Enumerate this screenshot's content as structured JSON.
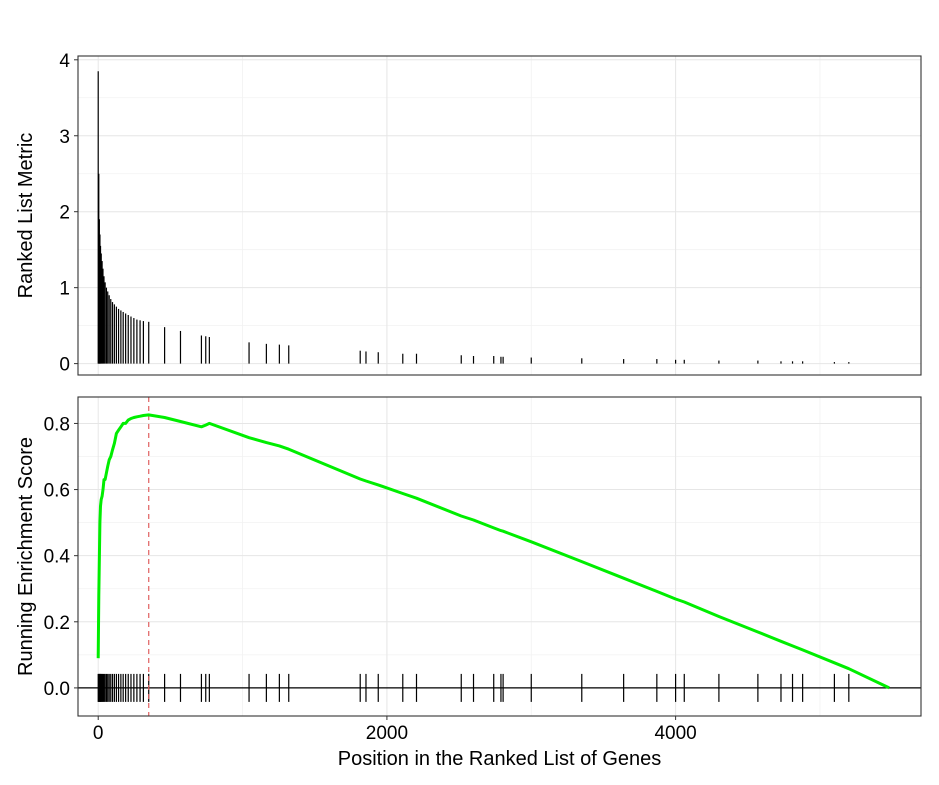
{
  "chart_data": [
    {
      "type": "bar",
      "panel": "top",
      "ylabel": "Ranked List Metric",
      "xlim": [
        -140,
        5700
      ],
      "ylim": [
        -0.15,
        4.05
      ],
      "x_ticks": [
        0,
        2000,
        4000
      ],
      "y_ticks": [
        0,
        1,
        2,
        3,
        4
      ],
      "y_tick_labels": [
        "0",
        "1",
        "2",
        "3",
        "4"
      ],
      "grid": true,
      "series": [
        {
          "x": [
            0,
            4,
            8,
            12,
            16,
            21,
            27,
            33,
            40,
            48,
            57,
            66,
            76,
            87,
            99,
            112,
            126,
            141,
            157,
            173,
            190,
            208,
            227,
            247,
            268,
            290,
            313,
            350,
            460,
            570,
            715,
            745,
            770,
            1045,
            1165,
            1255,
            1320,
            1815,
            1855,
            1940,
            2110,
            2205,
            2515,
            2600,
            2740,
            2790,
            2805,
            3000,
            3350,
            3640,
            3870,
            4000,
            4060,
            4300,
            4570,
            4730,
            4810,
            4880,
            5100,
            5200
          ],
          "values": [
            3.85,
            2.5,
            1.9,
            1.7,
            1.55,
            1.45,
            1.35,
            1.25,
            1.15,
            1.07,
            1.0,
            0.95,
            0.9,
            0.85,
            0.81,
            0.78,
            0.75,
            0.72,
            0.7,
            0.68,
            0.66,
            0.64,
            0.62,
            0.6,
            0.58,
            0.57,
            0.56,
            0.55,
            0.48,
            0.43,
            0.37,
            0.36,
            0.35,
            0.28,
            0.26,
            0.25,
            0.24,
            0.17,
            0.16,
            0.15,
            0.13,
            0.13,
            0.11,
            0.1,
            0.1,
            0.09,
            0.09,
            0.08,
            0.07,
            0.06,
            0.06,
            0.05,
            0.05,
            0.04,
            0.04,
            0.03,
            0.03,
            0.03,
            0.02,
            0.02
          ]
        }
      ]
    },
    {
      "type": "line",
      "panel": "bottom",
      "xlabel": "Position in the Ranked List of Genes",
      "ylabel": "Running Enrichment Score",
      "xlim": [
        -140,
        5700
      ],
      "ylim": [
        -0.085,
        0.88
      ],
      "x_ticks": [
        0,
        2000,
        4000
      ],
      "x_tick_labels": [
        "0",
        "2000",
        "4000"
      ],
      "y_ticks": [
        0,
        0.2,
        0.4,
        0.6,
        0.8
      ],
      "y_tick_labels": [
        "0.0",
        "0.2",
        "0.4",
        "0.6",
        "0.8"
      ],
      "grid": true,
      "line_color": "#00ee00",
      "peak_marker": {
        "x": 350,
        "color": "#e06060",
        "style": "dashed"
      },
      "zero_line": 0,
      "series": [
        {
          "x": [
            0,
            4,
            8,
            12,
            16,
            21,
            27,
            33,
            40,
            48,
            57,
            66,
            76,
            87,
            99,
            112,
            126,
            141,
            157,
            173,
            190,
            208,
            227,
            247,
            268,
            290,
            313,
            350,
            460,
            570,
            715,
            745,
            770,
            1045,
            1165,
            1255,
            1320,
            1815,
            1855,
            1940,
            2110,
            2205,
            2515,
            2600,
            2740,
            2790,
            2805,
            3000,
            3350,
            3640,
            3870,
            4000,
            4060,
            4300,
            4570,
            4730,
            4810,
            4880,
            5100,
            5200,
            5480
          ],
          "values": [
            0.09,
            0.28,
            0.4,
            0.5,
            0.55,
            0.57,
            0.58,
            0.6,
            0.63,
            0.63,
            0.65,
            0.67,
            0.69,
            0.7,
            0.72,
            0.74,
            0.77,
            0.78,
            0.79,
            0.8,
            0.8,
            0.81,
            0.815,
            0.818,
            0.82,
            0.822,
            0.824,
            0.826,
            0.818,
            0.806,
            0.79,
            0.795,
            0.8,
            0.757,
            0.742,
            0.732,
            0.722,
            0.632,
            0.626,
            0.614,
            0.588,
            0.574,
            0.52,
            0.508,
            0.484,
            0.476,
            0.474,
            0.442,
            0.382,
            0.332,
            0.292,
            0.269,
            0.26,
            0.216,
            0.169,
            0.141,
            0.127,
            0.115,
            0.076,
            0.058,
            0.0
          ]
        }
      ],
      "hits": [
        0,
        4,
        8,
        12,
        16,
        21,
        27,
        33,
        40,
        48,
        57,
        66,
        76,
        87,
        99,
        112,
        126,
        141,
        157,
        173,
        190,
        208,
        227,
        247,
        268,
        290,
        313,
        350,
        460,
        570,
        715,
        745,
        770,
        1045,
        1165,
        1255,
        1320,
        1815,
        1855,
        1940,
        2110,
        2205,
        2515,
        2600,
        2740,
        2790,
        2805,
        3000,
        3350,
        3640,
        3870,
        4000,
        4060,
        4300,
        4570,
        4730,
        4810,
        4880,
        5100,
        5200
      ]
    }
  ]
}
